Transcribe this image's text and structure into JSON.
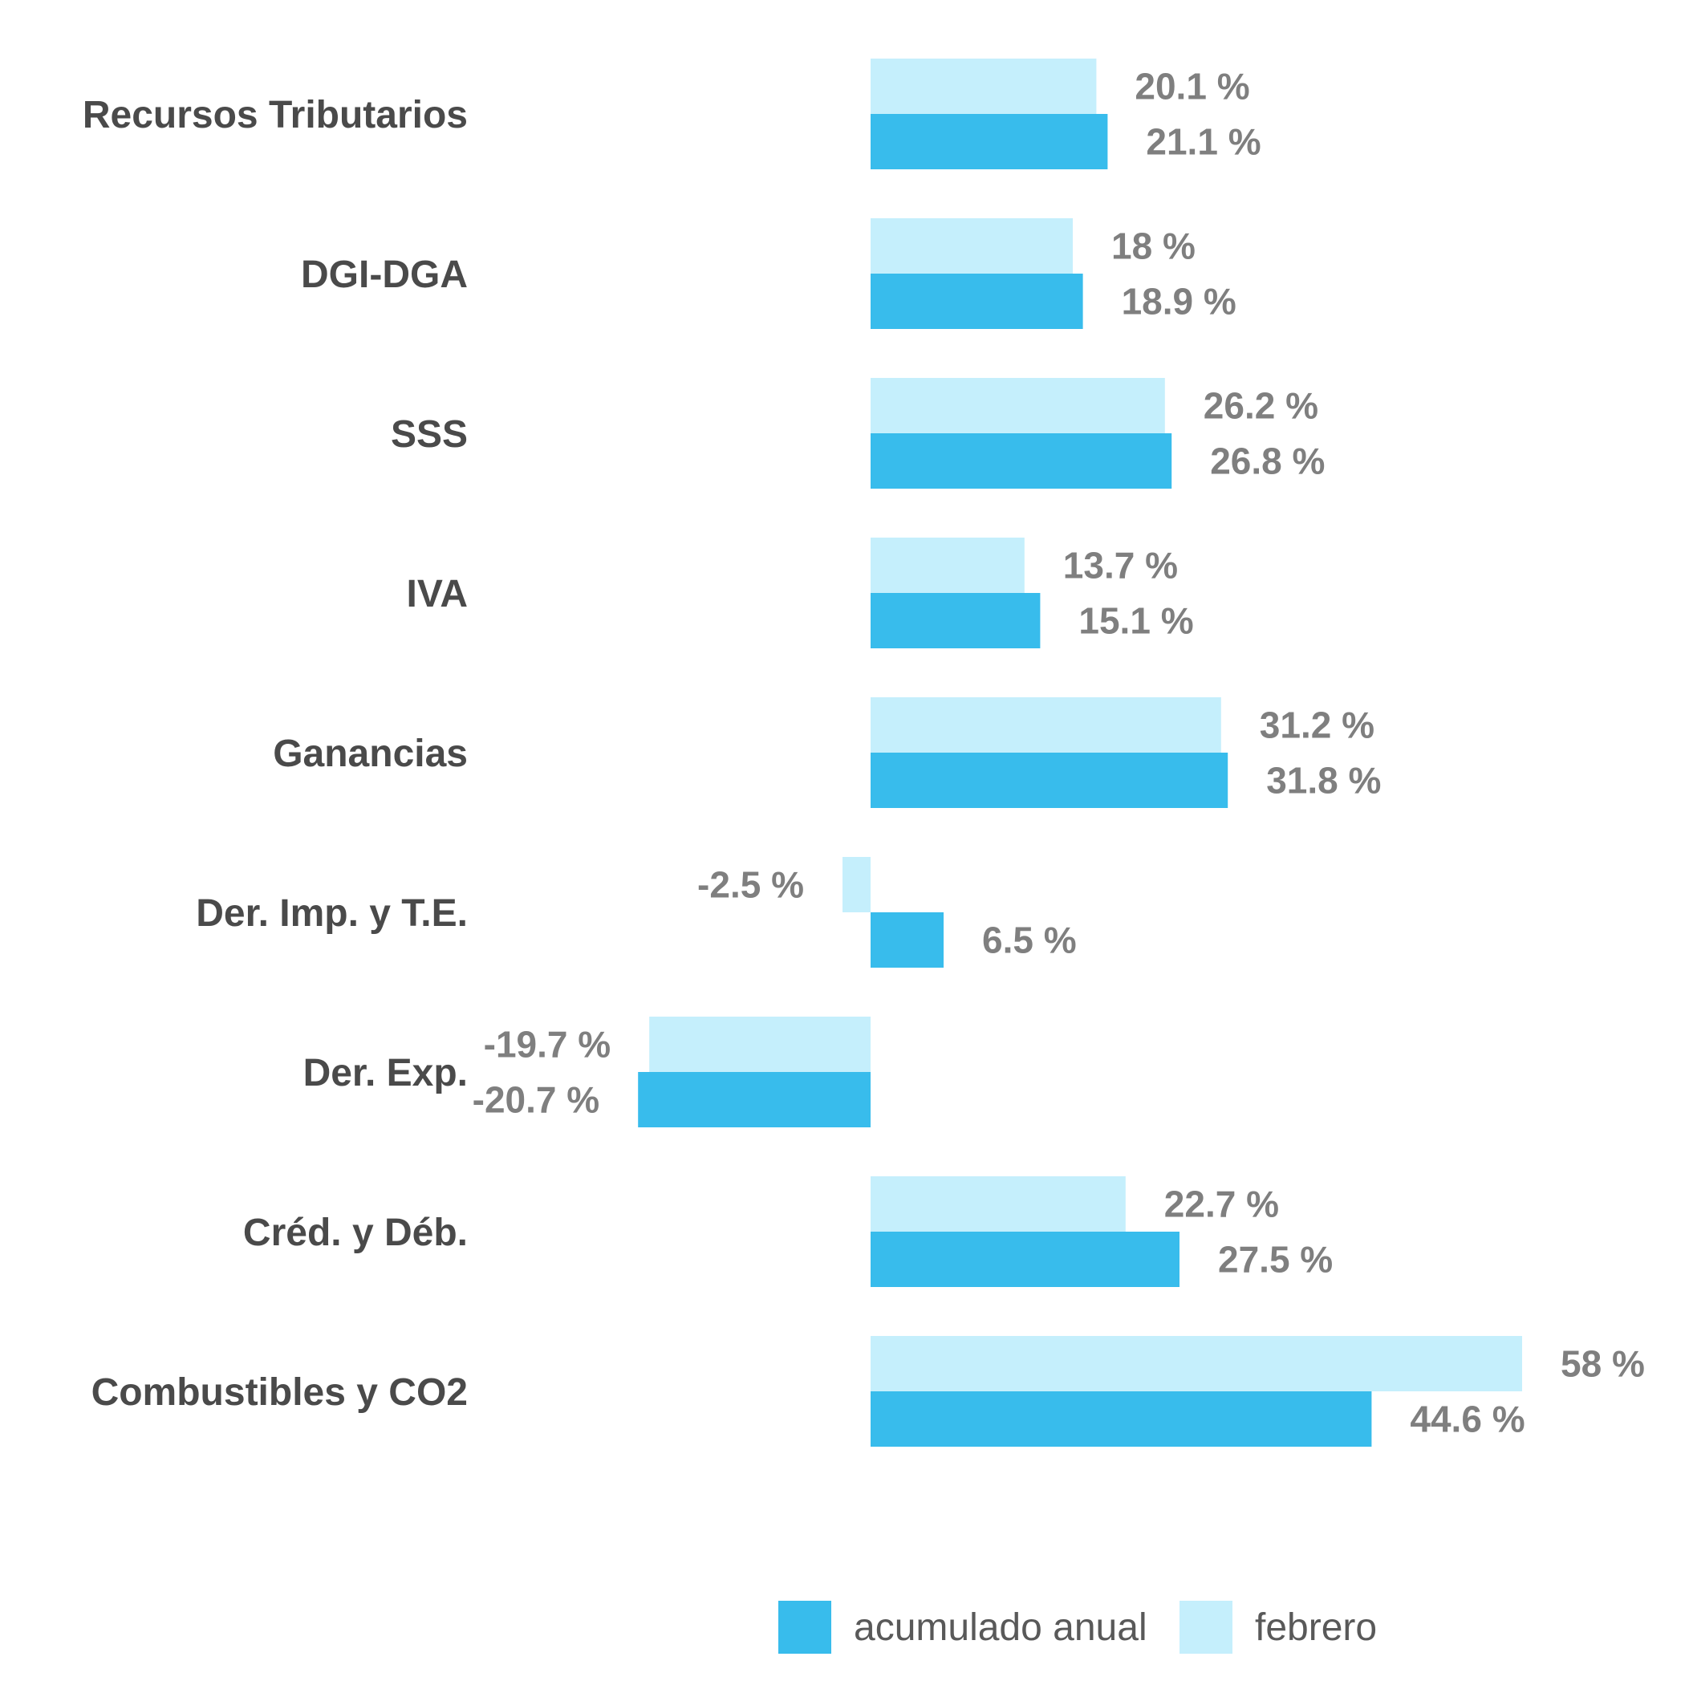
{
  "chart_data": {
    "type": "bar",
    "orientation": "horizontal",
    "categories": [
      "Recursos Tributarios",
      "DGI-DGA",
      "SSS",
      "IVA",
      "Ganancias",
      "Der. Imp. y T.E.",
      "Der. Exp.",
      "Créd. y Déb.",
      "Combustibles y CO2"
    ],
    "series": [
      {
        "name": "febrero",
        "color": "#c5effc",
        "values": [
          20.1,
          18,
          26.2,
          13.7,
          31.2,
          -2.5,
          -19.7,
          22.7,
          58
        ],
        "labels": [
          "20.1 %",
          "18 %",
          "26.2 %",
          "13.7 %",
          "31.2 %",
          "-2.5 %",
          "-19.7 %",
          "22.7 %",
          "58 %"
        ]
      },
      {
        "name": "acumulado anual",
        "color": "#38bcec",
        "values": [
          21.1,
          18.9,
          26.8,
          15.1,
          31.8,
          6.5,
          -20.7,
          27.5,
          44.6
        ],
        "labels": [
          "21.1 %",
          "18.9 %",
          "26.8 %",
          "15.1 %",
          "31.8 %",
          "6.5 %",
          "-20.7 %",
          "27.5 %",
          "44.6 %"
        ]
      }
    ],
    "xlim": [
      -32,
      68
    ],
    "grid": false,
    "legend": {
      "placement": "bottom",
      "entries": [
        {
          "label": "acumulado anual",
          "color": "#38bcec"
        },
        {
          "label": "febrero",
          "color": "#c5effc"
        }
      ]
    }
  }
}
